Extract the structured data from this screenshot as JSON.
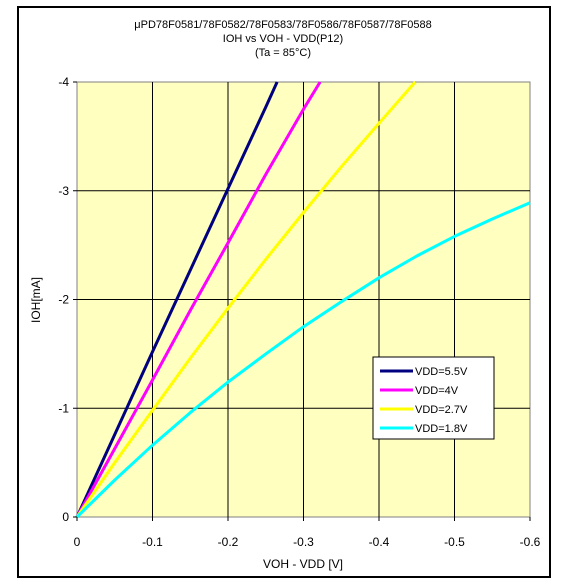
{
  "chart_data": {
    "type": "line",
    "title_lines": [
      "μPD78F0581/78F0582/78F0583/78F0586/78F0587/78F0588",
      "IOH vs VOH  - VDD(P12)",
      "(Ta =  85°C)"
    ],
    "xlabel": "VOH - VDD [V]",
    "ylabel": "IOH[mA]",
    "xlim": [
      0,
      -0.6
    ],
    "ylim": [
      0,
      -4
    ],
    "x_ticks": [
      0,
      -0.1,
      -0.2,
      -0.3,
      -0.4,
      -0.5,
      -0.6
    ],
    "x_tick_labels": [
      "0",
      "-0.1",
      "-0.2",
      "-0.3",
      "-0.4",
      "-0.5",
      "-0.6"
    ],
    "y_ticks": [
      0,
      -1,
      -2,
      -3,
      -4
    ],
    "y_tick_labels": [
      "0",
      "-1",
      "-2",
      "-3",
      "-4"
    ],
    "grid": true,
    "plot_background": "#ffffc0",
    "legend_position": "lower-right",
    "series": [
      {
        "name": "VDD=5.5V",
        "color": "#000080",
        "x": [
          0,
          -0.05,
          -0.1,
          -0.15,
          -0.2,
          -0.25,
          -0.265
        ],
        "y": [
          0,
          -0.76,
          -1.52,
          -2.27,
          -3.02,
          -3.77,
          -4.0
        ]
      },
      {
        "name": "VDD=4V",
        "color": "#ff00ff",
        "x": [
          0,
          -0.05,
          -0.1,
          -0.15,
          -0.2,
          -0.25,
          -0.3,
          -0.322
        ],
        "y": [
          0,
          -0.63,
          -1.26,
          -1.9,
          -2.52,
          -3.15,
          -3.75,
          -4.0
        ]
      },
      {
        "name": "VDD=2.7V",
        "color": "#ffff00",
        "x": [
          0,
          -0.05,
          -0.1,
          -0.15,
          -0.2,
          -0.25,
          -0.3,
          -0.35,
          -0.4,
          -0.448
        ],
        "y": [
          0,
          -0.5,
          -0.98,
          -1.46,
          -1.92,
          -2.37,
          -2.8,
          -3.22,
          -3.62,
          -4.0
        ]
      },
      {
        "name": "VDD=1.8V",
        "color": "#00ffff",
        "x": [
          0,
          -0.05,
          -0.1,
          -0.15,
          -0.2,
          -0.25,
          -0.3,
          -0.35,
          -0.4,
          -0.45,
          -0.5,
          -0.55,
          -0.6
        ],
        "y": [
          0,
          -0.34,
          -0.66,
          -0.96,
          -1.24,
          -1.5,
          -1.75,
          -1.98,
          -2.2,
          -2.4,
          -2.58,
          -2.74,
          -2.89
        ]
      }
    ]
  }
}
